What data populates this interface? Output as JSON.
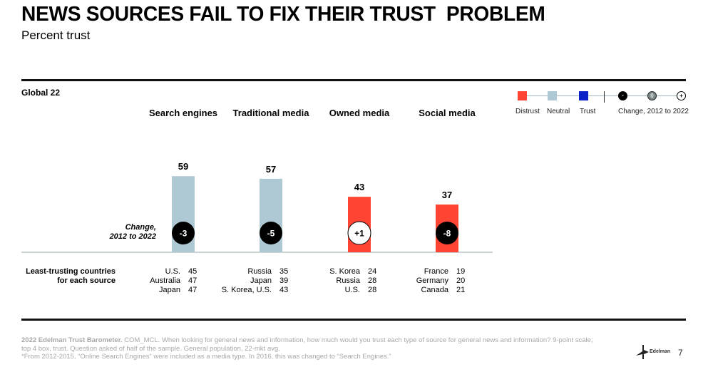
{
  "header": {
    "title": "NEWS SOURCES FAIL TO FIX THEIR TRUST  PROBLEM",
    "subtitle": "Percent trust"
  },
  "section_label": "Global 22",
  "legend": {
    "trust_levels": [
      {
        "label": "Distrust",
        "color": "#ff4433"
      },
      {
        "label": "Neutral",
        "color": "#aec9d3"
      },
      {
        "label": "Trust",
        "color": "#0b22c8"
      }
    ],
    "change": {
      "symbols": [
        "-",
        "0",
        "+"
      ],
      "label": "Change, 2012 to 2022"
    }
  },
  "chart_data": {
    "type": "bar",
    "title": "NEWS SOURCES FAIL TO FIX THEIR TRUST  PROBLEM",
    "subtitle": "Percent trust",
    "xlabel": "",
    "ylabel": "Percent trust",
    "ylim": [
      0,
      100
    ],
    "grid": false,
    "legend_position": "top-right",
    "categories": [
      "Search engines",
      "Traditional media",
      "Owned media",
      "Social media"
    ],
    "values": [
      59,
      57,
      43,
      37
    ],
    "trust_level": [
      "Neutral",
      "Neutral",
      "Distrust",
      "Distrust"
    ],
    "change_2012_to_2022": [
      "-3",
      "-5",
      "+1",
      "-8"
    ],
    "change_caption": [
      "Change,",
      "2012 to 2022"
    ]
  },
  "least_trusting": {
    "label_lines": [
      "Least-trusting countries",
      "for each source"
    ],
    "sources": [
      {
        "rows": [
          {
            "country": "U.S.",
            "value": "45"
          },
          {
            "country": "Australia",
            "value": "47"
          },
          {
            "country": "Japan",
            "value": "47"
          }
        ]
      },
      {
        "rows": [
          {
            "country": "Russia",
            "value": "35"
          },
          {
            "country": "Japan",
            "value": "39"
          },
          {
            "country": "S. Korea, U.S.",
            "value": "43"
          }
        ]
      },
      {
        "rows": [
          {
            "country": "S. Korea",
            "value": "24"
          },
          {
            "country": "Russia",
            "value": "28"
          },
          {
            "country": "U.S.",
            "value": "28"
          }
        ]
      },
      {
        "rows": [
          {
            "country": "France",
            "value": "19"
          },
          {
            "country": "Germany",
            "value": "20"
          },
          {
            "country": "Canada",
            "value": "21"
          }
        ]
      }
    ]
  },
  "footnote": {
    "bold": "2022 Edelman Trust Barometer.",
    "line1": " COM_MCL. When looking for general news and information, how much would you trust each type of source for general news and information? 9-point scale;",
    "line2": "top 4 box, trust. Question asked of half of the sample. General population, 22-mkt avg.",
    "line3": "*From 2012-2015, “Online Search Engines” were included as a media type. In 2016, this was changed to “Search Engines.”"
  },
  "branding": {
    "logo_text": "Edelman",
    "page_number": "7"
  }
}
